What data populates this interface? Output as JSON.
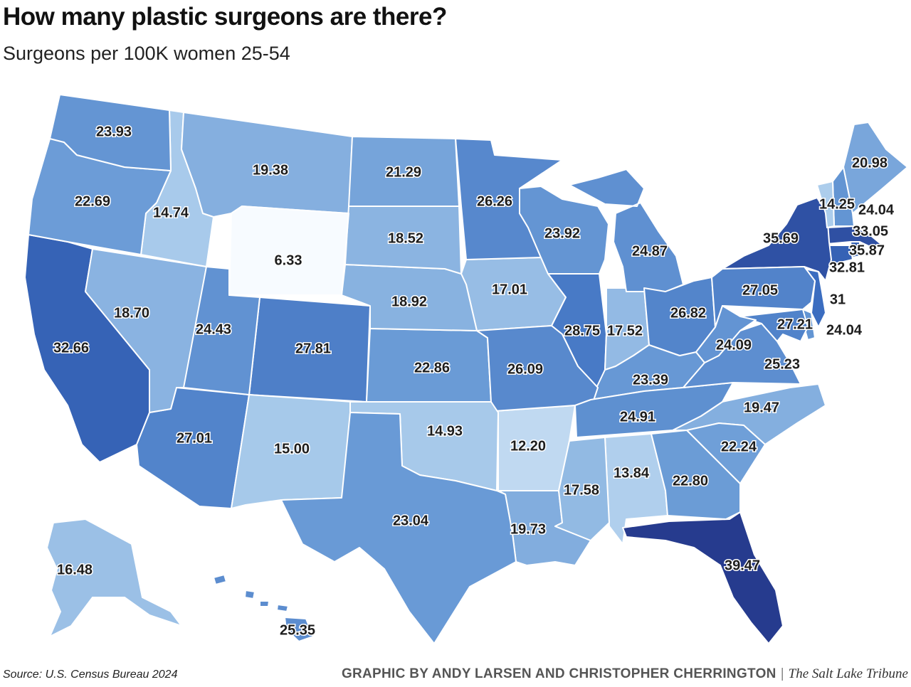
{
  "title": "How many plastic surgeons are there?",
  "subtitle": "Surgeons per 100K women 25-54",
  "footer": {
    "source": "Source: U.S. Census Bureau 2024",
    "credit": "GRAPHIC BY ANDY LARSEN AND CHRISTOPHER CHERRINGTON",
    "separator": "|",
    "publisher": "The Salt Lake Tribune"
  },
  "scale": {
    "min": 6.33,
    "max": 39.47,
    "colors": [
      "#f7fbff",
      "#a9cbeb",
      "#6a9bd6",
      "#3a6cbf",
      "#263b8e"
    ]
  },
  "states": [
    {
      "code": "AK",
      "name": "Alaska",
      "value": "16.48"
    },
    {
      "code": "AL",
      "name": "Alabama",
      "value": "13.84"
    },
    {
      "code": "AR",
      "name": "Arkansas",
      "value": "12.20"
    },
    {
      "code": "AZ",
      "name": "Arizona",
      "value": "27.01"
    },
    {
      "code": "CA",
      "name": "California",
      "value": "32.66"
    },
    {
      "code": "CO",
      "name": "Colorado",
      "value": "27.81"
    },
    {
      "code": "CT",
      "name": "Connecticut",
      "value": "32.81"
    },
    {
      "code": "DE",
      "name": "Delaware",
      "value": "24.04"
    },
    {
      "code": "FL",
      "name": "Florida",
      "value": "39.47"
    },
    {
      "code": "GA",
      "name": "Georgia",
      "value": "22.80"
    },
    {
      "code": "HI",
      "name": "Hawaii",
      "value": "25.35"
    },
    {
      "code": "IA",
      "name": "Iowa",
      "value": "17.01"
    },
    {
      "code": "ID",
      "name": "Idaho",
      "value": "14.74"
    },
    {
      "code": "IL",
      "name": "Illinois",
      "value": "28.75"
    },
    {
      "code": "IN",
      "name": "Indiana",
      "value": "17.52"
    },
    {
      "code": "KS",
      "name": "Kansas",
      "value": "22.86"
    },
    {
      "code": "KY",
      "name": "Kentucky",
      "value": "23.39"
    },
    {
      "code": "LA",
      "name": "Louisiana",
      "value": "19.73"
    },
    {
      "code": "MA",
      "name": "Massachusetts",
      "value": "35.87"
    },
    {
      "code": "MD",
      "name": "Maryland",
      "value": "27.21"
    },
    {
      "code": "ME",
      "name": "Maine",
      "value": "20.98"
    },
    {
      "code": "MI",
      "name": "Michigan",
      "value": "24.87"
    },
    {
      "code": "MN",
      "name": "Minnesota",
      "value": "26.26"
    },
    {
      "code": "MO",
      "name": "Missouri",
      "value": "26.09"
    },
    {
      "code": "MS",
      "name": "Mississippi",
      "value": "17.58"
    },
    {
      "code": "MT",
      "name": "Montana",
      "value": "19.38"
    },
    {
      "code": "NC",
      "name": "North Carolina",
      "value": "19.47"
    },
    {
      "code": "ND",
      "name": "North Dakota",
      "value": "21.29"
    },
    {
      "code": "NE",
      "name": "Nebraska",
      "value": "18.92"
    },
    {
      "code": "NH",
      "name": "New Hampshire",
      "value": "24.04"
    },
    {
      "code": "NJ",
      "name": "New Jersey",
      "value": "31"
    },
    {
      "code": "NM",
      "name": "New Mexico",
      "value": "15.00"
    },
    {
      "code": "NV",
      "name": "Nevada",
      "value": "18.70"
    },
    {
      "code": "NY",
      "name": "New York",
      "value": "35.69"
    },
    {
      "code": "OH",
      "name": "Ohio",
      "value": "26.82"
    },
    {
      "code": "OK",
      "name": "Oklahoma",
      "value": "14.93"
    },
    {
      "code": "OR",
      "name": "Oregon",
      "value": "22.69"
    },
    {
      "code": "PA",
      "name": "Pennsylvania",
      "value": "27.05"
    },
    {
      "code": "RI",
      "name": "Rhode Island",
      "value": "33.05"
    },
    {
      "code": "SC",
      "name": "South Carolina",
      "value": "22.24"
    },
    {
      "code": "SD",
      "name": "South Dakota",
      "value": "18.52"
    },
    {
      "code": "TN",
      "name": "Tennessee",
      "value": "24.91"
    },
    {
      "code": "TX",
      "name": "Texas",
      "value": "23.04"
    },
    {
      "code": "UT",
      "name": "Utah",
      "value": "24.43"
    },
    {
      "code": "VA",
      "name": "Virginia",
      "value": "25.23"
    },
    {
      "code": "VT",
      "name": "Vermont",
      "value": "14.25"
    },
    {
      "code": "WA",
      "name": "Washington",
      "value": "23.93"
    },
    {
      "code": "WI",
      "name": "Wisconsin",
      "value": "23.92"
    },
    {
      "code": "WV",
      "name": "West Virginia",
      "value": "24.09"
    },
    {
      "code": "WY",
      "name": "Wyoming",
      "value": "6.33"
    }
  ]
}
